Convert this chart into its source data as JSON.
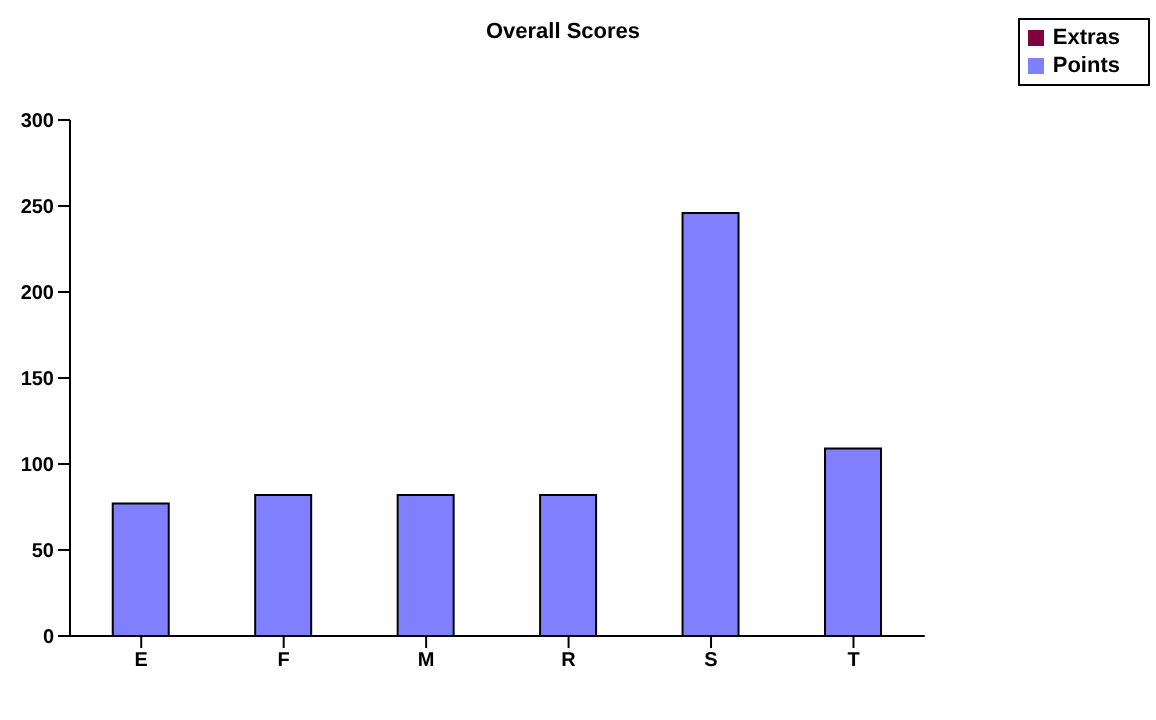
{
  "chart_data": {
    "type": "bar",
    "title": "Overall Scores",
    "categories": [
      "E",
      "F",
      "M",
      "R",
      "S",
      "T"
    ],
    "stacked": true,
    "series": [
      {
        "name": "Points",
        "color": "#8080ff",
        "values": [
          77,
          82,
          82,
          82,
          246,
          109
        ]
      },
      {
        "name": "Extras",
        "color": "#800040",
        "values": [
          0,
          0,
          0,
          0,
          0,
          0
        ]
      }
    ],
    "ylim": [
      0,
      300
    ],
    "yticks": [
      0,
      50,
      100,
      150,
      200,
      250,
      300
    ],
    "grid": false,
    "legend": "top right"
  }
}
